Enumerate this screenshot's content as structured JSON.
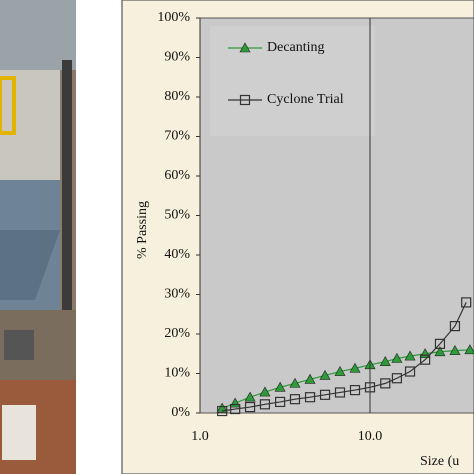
{
  "chart_data": {
    "type": "line",
    "x_label": "Size (u",
    "y_label": "% Passing",
    "log_x": true,
    "xlim": [
      1,
      100
    ],
    "ylim": [
      0,
      100
    ],
    "xticks": [
      {
        "value": 1,
        "label": "1.0"
      },
      {
        "value": 10,
        "label": "10.0"
      }
    ],
    "yticks": [
      {
        "value": 0,
        "label": "0%"
      },
      {
        "value": 10,
        "label": "10%"
      },
      {
        "value": 20,
        "label": "20%"
      },
      {
        "value": 30,
        "label": "30%"
      },
      {
        "value": 40,
        "label": "40%"
      },
      {
        "value": 50,
        "label": "50%"
      },
      {
        "value": 60,
        "label": "60%"
      },
      {
        "value": 70,
        "label": "70%"
      },
      {
        "value": 80,
        "label": "80%"
      },
      {
        "value": 90,
        "label": "90%"
      },
      {
        "value": 100,
        "label": "100%"
      }
    ],
    "x_grid": true,
    "legend": "upper left",
    "series": [
      {
        "name": "Decanting",
        "color": "#2e9a3a",
        "marker": "triangle",
        "x": [
          1.35,
          1.61,
          1.97,
          2.41,
          2.96,
          3.62,
          4.44,
          5.44,
          6.66,
          8.16,
          10,
          12.3,
          14.4,
          17.2,
          21.1,
          25.8,
          31.6,
          38.7
        ],
        "values": [
          1.2,
          2.5,
          4,
          5.3,
          6.5,
          7.5,
          8.5,
          9.5,
          10.5,
          11.3,
          12.2,
          13,
          13.8,
          14.4,
          15,
          15.5,
          15.8,
          16
        ]
      },
      {
        "name": "Cyclone Trial",
        "color": "#333333",
        "marker": "square",
        "x": [
          1.35,
          1.61,
          1.97,
          2.41,
          2.96,
          3.62,
          4.44,
          5.44,
          6.66,
          8.16,
          10,
          12.3,
          14.4,
          17.2,
          21.1,
          25.8,
          31.6,
          36.8
        ],
        "values": [
          0.5,
          1,
          1.5,
          2.2,
          2.8,
          3.5,
          4,
          4.6,
          5.2,
          5.8,
          6.5,
          7.5,
          8.8,
          10.5,
          13.5,
          17.5,
          22,
          28
        ]
      }
    ]
  }
}
